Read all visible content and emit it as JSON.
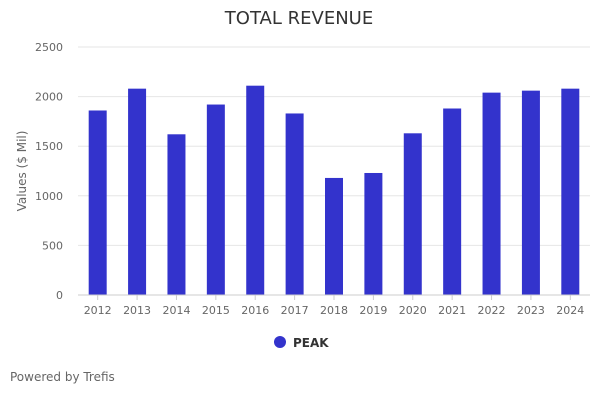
{
  "chart_data": {
    "type": "bar",
    "title": "TOTAL REVENUE",
    "xlabel": "",
    "ylabel": "Values ($ Mil)",
    "ylim": [
      0,
      2500
    ],
    "yticks": [
      0,
      500,
      1000,
      1500,
      2000,
      2500
    ],
    "grid": true,
    "legend_position": "bottom-center",
    "categories": [
      "2012",
      "2013",
      "2014",
      "2015",
      "2016",
      "2017",
      "2018",
      "2019",
      "2020",
      "2021",
      "2022",
      "2023",
      "2024"
    ],
    "series": [
      {
        "name": "PEAK",
        "color": "#3333cc",
        "values": [
          1860,
          2080,
          1620,
          1920,
          2110,
          1830,
          1180,
          1230,
          1630,
          1880,
          2040,
          2060,
          2080
        ]
      }
    ]
  },
  "footer": {
    "credit": "Powered by Trefis"
  }
}
